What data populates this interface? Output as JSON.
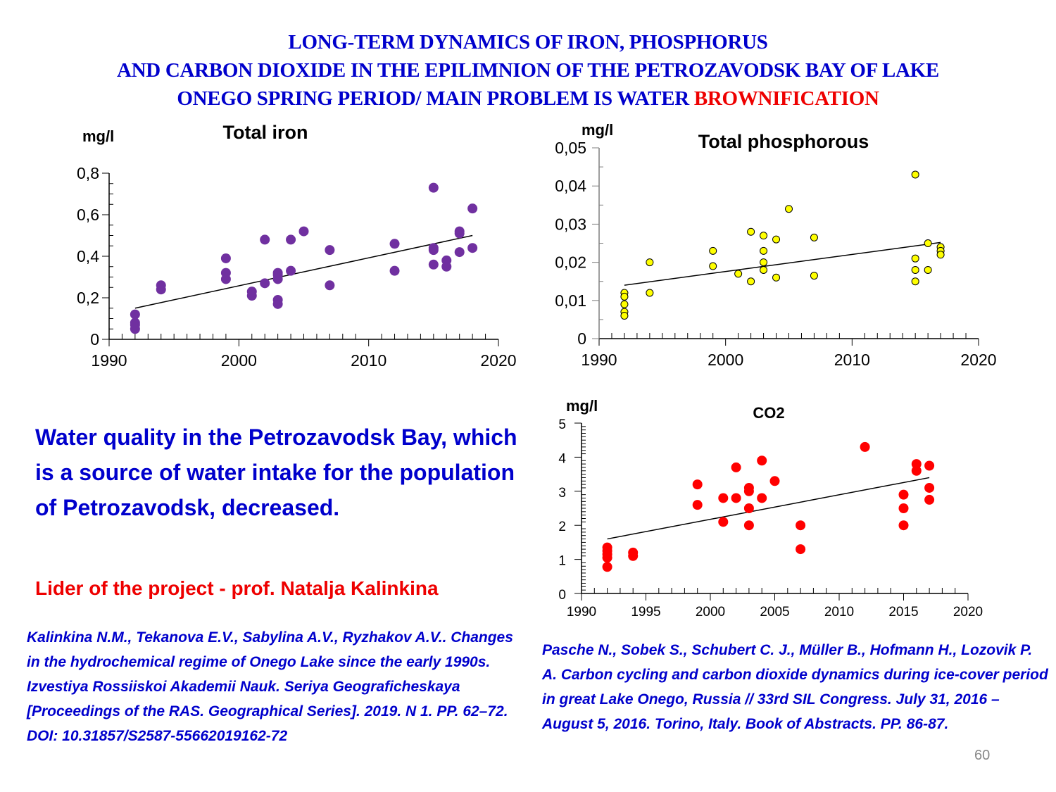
{
  "slide": {
    "title_lines": [
      "LONG-TERM DYNAMICS OF IRON, PHOSPHORUS",
      "AND CARBON DIOXIDE IN THE EPILIMNION OF THE PETROZAVODSK BAY OF LAKE",
      "ONEGO  SPRING PERIOD/ MAIN PROBLEM IS WATER "
    ],
    "title_highlight": "BROWNIFICATION",
    "note": "Water quality in the Petrozavodsk Bay, which is a source of water intake for the population of Petrozavodsk, decreased.",
    "leader": "Lider of the project  - prof. Natalja Kalinkina",
    "reference_left": "Kalinkina N.M., Tekanova E.V., Sabylina A.V., Ryzhakov A.V.. Changes in the hydrochemical regime of Onego Lake since the early 1990s. Izvestiya Rossiiskoi Akademii Nauk. Seriya Geograficheskaya [Proceedings of the RAS. Geographical Series]. 2019. N 1. PP. 62–72. DOI: 10.31857/S2587-55662019162-72",
    "reference_right": "Pasche N., Sobek S., Schubert C. J., Müller B., Hofmann H., Lozovik P. A. Carbon cycling and carbon dioxide dynamics during ice-cover period in great Lake Onego, Russia // 33rd SIL Congress. July 31, 2016 – August 5, 2016. Torino, Italy. Book of Abstracts. PP. 86-87.",
    "page_number": "60",
    "colors": {
      "title": "#0000cc",
      "highlight": "#ee0000",
      "iron": "#7030a0",
      "phosphorus": "#ffff00",
      "co2": "#ff0000"
    }
  },
  "chart_data": [
    {
      "id": "iron",
      "type": "scatter",
      "title": "Total iron",
      "ylabel": "mg/l",
      "xlabel": "",
      "xlim": [
        1990,
        2020
      ],
      "ylim": [
        0,
        0.8
      ],
      "xticks": [
        1990,
        2000,
        2010,
        2020
      ],
      "xtick_labels": [
        "1990",
        "2000",
        "2010",
        "2020"
      ],
      "yticks": [
        0,
        0.2,
        0.4,
        0.6,
        0.8
      ],
      "ytick_labels": [
        "0",
        "0,2",
        "0,4",
        "0,6",
        "0,8"
      ],
      "grid": false,
      "legend": "none",
      "trendline": {
        "x": [
          1992,
          2018
        ],
        "y": [
          0.15,
          0.5
        ]
      },
      "points": [
        [
          1992,
          0.12
        ],
        [
          1992,
          0.08
        ],
        [
          1992,
          0.07
        ],
        [
          1992,
          0.05
        ],
        [
          1994,
          0.26
        ],
        [
          1994,
          0.24
        ],
        [
          1999,
          0.39
        ],
        [
          1999,
          0.32
        ],
        [
          1999,
          0.29
        ],
        [
          2001,
          0.23
        ],
        [
          2001,
          0.21
        ],
        [
          2002,
          0.48
        ],
        [
          2002,
          0.27
        ],
        [
          2003,
          0.32
        ],
        [
          2003,
          0.31
        ],
        [
          2003,
          0.29
        ],
        [
          2003,
          0.19
        ],
        [
          2003,
          0.17
        ],
        [
          2004,
          0.48
        ],
        [
          2004,
          0.33
        ],
        [
          2005,
          0.52
        ],
        [
          2007,
          0.43
        ],
        [
          2007,
          0.26
        ],
        [
          2012,
          0.46
        ],
        [
          2012,
          0.33
        ],
        [
          2015,
          0.73
        ],
        [
          2015,
          0.44
        ],
        [
          2015,
          0.43
        ],
        [
          2015,
          0.36
        ],
        [
          2016,
          0.38
        ],
        [
          2016,
          0.35
        ],
        [
          2017,
          0.52
        ],
        [
          2017,
          0.51
        ],
        [
          2017,
          0.42
        ],
        [
          2018,
          0.63
        ],
        [
          2018,
          0.44
        ]
      ]
    },
    {
      "id": "phosphorus",
      "type": "scatter",
      "title": "Total phosphorous",
      "ylabel": "mg/l",
      "xlabel": "",
      "xlim": [
        1990,
        2020
      ],
      "ylim": [
        0,
        0.05
      ],
      "xticks": [
        1990,
        2000,
        2010,
        2020
      ],
      "xtick_labels": [
        "1990",
        "2000",
        "2010",
        "2020"
      ],
      "yticks": [
        0,
        0.01,
        0.02,
        0.03,
        0.04,
        0.05
      ],
      "ytick_labels": [
        "0",
        "0,01",
        "0,02",
        "0,03",
        "0,04",
        "0,05"
      ],
      "grid": false,
      "legend": "none",
      "trendline": {
        "x": [
          1992,
          2017
        ],
        "y": [
          0.014,
          0.0252
        ]
      },
      "points": [
        [
          1992,
          0.012
        ],
        [
          1992,
          0.011
        ],
        [
          1992,
          0.009
        ],
        [
          1992,
          0.007
        ],
        [
          1992,
          0.006
        ],
        [
          1994,
          0.02
        ],
        [
          1994,
          0.012
        ],
        [
          1999,
          0.023
        ],
        [
          1999,
          0.019
        ],
        [
          2001,
          0.017
        ],
        [
          2002,
          0.028
        ],
        [
          2002,
          0.015
        ],
        [
          2003,
          0.027
        ],
        [
          2003,
          0.023
        ],
        [
          2003,
          0.02
        ],
        [
          2003,
          0.018
        ],
        [
          2004,
          0.026
        ],
        [
          2004,
          0.016
        ],
        [
          2005,
          0.034
        ],
        [
          2007,
          0.0265
        ],
        [
          2007,
          0.0165
        ],
        [
          2015,
          0.043
        ],
        [
          2015,
          0.021
        ],
        [
          2015,
          0.018
        ],
        [
          2015,
          0.015
        ],
        [
          2016,
          0.025
        ],
        [
          2016,
          0.018
        ],
        [
          2017,
          0.024
        ],
        [
          2017,
          0.023
        ],
        [
          2017,
          0.022
        ]
      ]
    },
    {
      "id": "co2",
      "type": "scatter",
      "title": "CO2",
      "ylabel": "mg/l",
      "xlabel": "",
      "xlim": [
        1990,
        2020
      ],
      "ylim": [
        0,
        5
      ],
      "xticks": [
        1990,
        1995,
        2000,
        2005,
        2010,
        2015,
        2020
      ],
      "xtick_labels": [
        "1990",
        "1995",
        "2000",
        "2005",
        "2010",
        "2015",
        "2020"
      ],
      "yticks": [
        0,
        1,
        2,
        3,
        4,
        5
      ],
      "ytick_labels": [
        "0",
        "1",
        "2",
        "3",
        "4",
        "5"
      ],
      "grid": false,
      "legend": "none",
      "trendline": {
        "x": [
          1992,
          2017
        ],
        "y": [
          1.6,
          3.4
        ]
      },
      "points": [
        [
          1992,
          1.35
        ],
        [
          1992,
          1.25
        ],
        [
          1992,
          1.15
        ],
        [
          1992,
          1.05
        ],
        [
          1992,
          0.78
        ],
        [
          1994,
          1.2
        ],
        [
          1994,
          1.1
        ],
        [
          1999,
          3.2
        ],
        [
          1999,
          2.6
        ],
        [
          2001,
          2.8
        ],
        [
          2001,
          2.1
        ],
        [
          2002,
          3.7
        ],
        [
          2002,
          2.8
        ],
        [
          2003,
          3.1
        ],
        [
          2003,
          3.0
        ],
        [
          2003,
          2.5
        ],
        [
          2003,
          2.0
        ],
        [
          2004,
          3.9
        ],
        [
          2004,
          2.8
        ],
        [
          2005,
          3.3
        ],
        [
          2007,
          2.0
        ],
        [
          2007,
          1.3
        ],
        [
          2012,
          4.3
        ],
        [
          2015,
          2.9
        ],
        [
          2015,
          2.5
        ],
        [
          2015,
          2.0
        ],
        [
          2016,
          3.8
        ],
        [
          2016,
          3.6
        ],
        [
          2017,
          3.75
        ],
        [
          2017,
          3.1
        ],
        [
          2017,
          2.75
        ]
      ]
    }
  ]
}
